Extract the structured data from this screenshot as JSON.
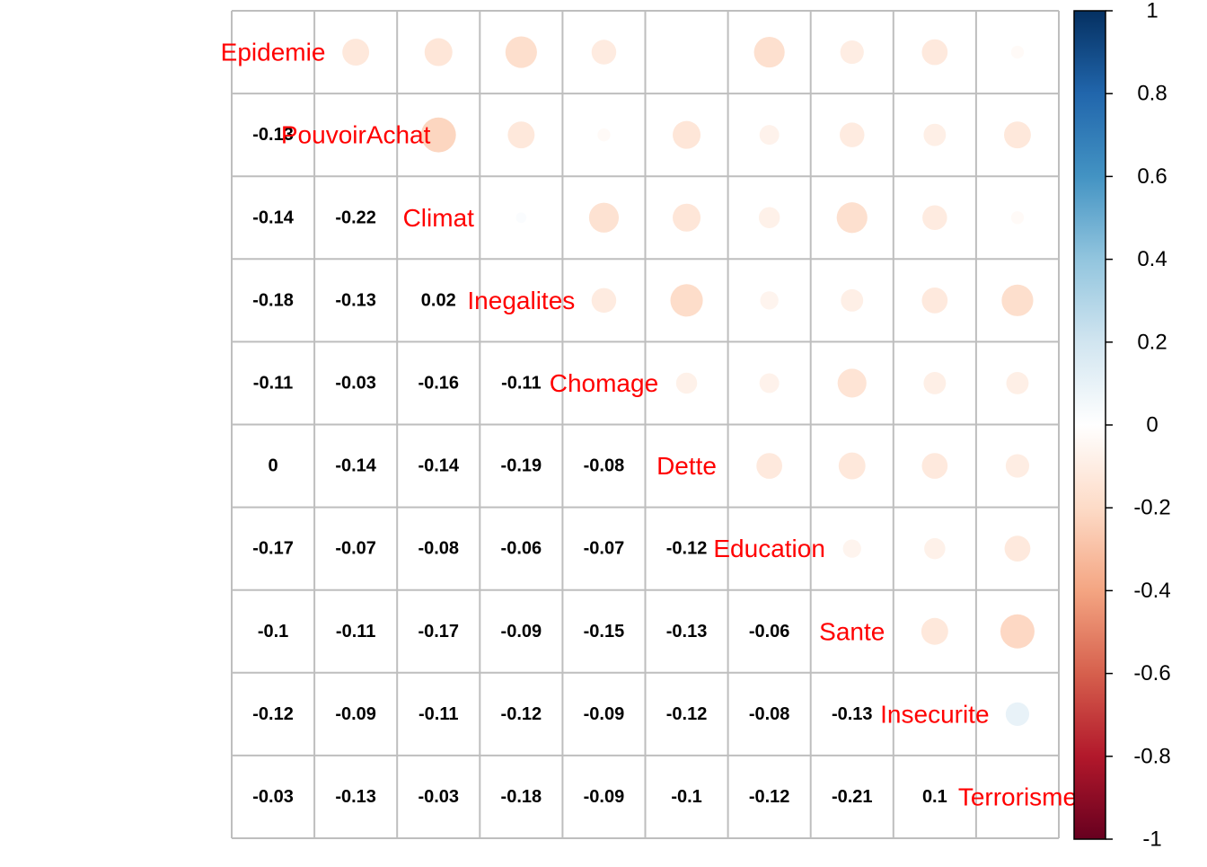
{
  "chart_data": {
    "type": "heatmap",
    "variables": [
      "Epidemie",
      "PouvoirAchat",
      "Climat",
      "Inegalites",
      "Chomage",
      "Dette",
      "Education",
      "Sante",
      "Insecurite",
      "Terrorisme"
    ],
    "correlations": [
      [
        1,
        -0.13,
        -0.14,
        -0.18,
        -0.11,
        0,
        -0.17,
        -0.1,
        -0.12,
        -0.03
      ],
      [
        -0.13,
        1,
        -0.22,
        -0.13,
        -0.03,
        -0.14,
        -0.07,
        -0.11,
        -0.09,
        -0.13
      ],
      [
        -0.14,
        -0.22,
        1,
        0.02,
        -0.16,
        -0.14,
        -0.08,
        -0.17,
        -0.11,
        -0.03
      ],
      [
        -0.18,
        -0.13,
        0.02,
        1,
        -0.11,
        -0.19,
        -0.06,
        -0.09,
        -0.12,
        -0.18
      ],
      [
        -0.11,
        -0.03,
        -0.16,
        -0.11,
        1,
        -0.08,
        -0.07,
        -0.15,
        -0.09,
        -0.09
      ],
      [
        0,
        -0.14,
        -0.14,
        -0.19,
        -0.08,
        1,
        -0.12,
        -0.13,
        -0.12,
        -0.1
      ],
      [
        -0.17,
        -0.07,
        -0.08,
        -0.06,
        -0.07,
        -0.12,
        1,
        -0.06,
        -0.08,
        -0.12
      ],
      [
        -0.1,
        -0.11,
        -0.17,
        -0.09,
        -0.15,
        -0.13,
        -0.06,
        1,
        -0.13,
        -0.21
      ],
      [
        -0.12,
        -0.09,
        -0.11,
        -0.12,
        -0.09,
        -0.12,
        -0.08,
        -0.13,
        1,
        0.1
      ],
      [
        -0.03,
        -0.13,
        -0.03,
        -0.18,
        -0.09,
        -0.1,
        -0.12,
        -0.21,
        0.1,
        1
      ]
    ],
    "lower_labels": [
      [],
      [
        "-0.13"
      ],
      [
        "-0.14",
        "-0.22"
      ],
      [
        "-0.18",
        "-0.13",
        "0.02"
      ],
      [
        "-0.11",
        "-0.03",
        "-0.16",
        "-0.11"
      ],
      [
        "0",
        "-0.14",
        "-0.14",
        "-0.19",
        "-0.08"
      ],
      [
        "-0.17",
        "-0.07",
        "-0.08",
        "-0.06",
        "-0.07",
        "-0.12"
      ],
      [
        "-0.1",
        "-0.11",
        "-0.17",
        "-0.09",
        "-0.15",
        "-0.13",
        "-0.06"
      ],
      [
        "-0.12",
        "-0.09",
        "-0.11",
        "-0.12",
        "-0.09",
        "-0.12",
        "-0.08",
        "-0.13"
      ],
      [
        "-0.03",
        "-0.13",
        "-0.03",
        "-0.18",
        "-0.09",
        "-0.1",
        "-0.12",
        "-0.21",
        "0.1"
      ]
    ],
    "upper_glyph": "circle",
    "lower_glyph": "number",
    "diagonal": "variable-name",
    "color_scale": {
      "range": [
        -1,
        1
      ],
      "ticks": [
        "1",
        "0.8",
        "0.6",
        "0.4",
        "0.2",
        "0",
        "-0.2",
        "-0.4",
        "-0.6",
        "-0.8",
        "-1"
      ],
      "colors": [
        "#67001F",
        "#B2182B",
        "#D6604D",
        "#F4A582",
        "#FDDBC7",
        "#FFFFFF",
        "#D1E5F0",
        "#92C5DE",
        "#4393C3",
        "#2166AC",
        "#053061"
      ]
    },
    "label_color": "#FF0000",
    "number_color": "#000000",
    "grid_color": "#BEBEBE",
    "legend": "right"
  }
}
